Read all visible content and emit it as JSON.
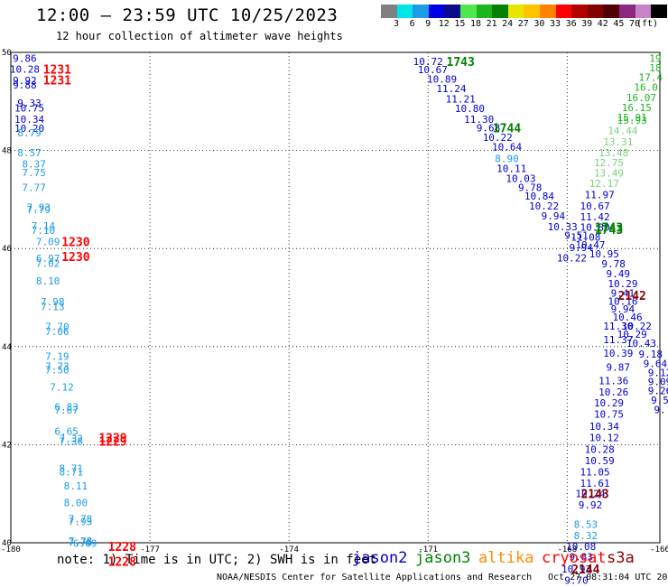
{
  "header": {
    "title": "12:00 – 23:59 UTC 10/25/2023",
    "subtitle": "12 hour collection of altimeter wave heights",
    "unit_label": "(ft)"
  },
  "color_scale": {
    "colors": [
      "#808080",
      "#00e5e5",
      "#1e9be5",
      "#0000e5",
      "#0a0a8c",
      "#50e650",
      "#1eb41e",
      "#008200",
      "#e6e600",
      "#ffc300",
      "#ff8200",
      "#ff0000",
      "#b40000",
      "#820000",
      "#500000",
      "#8c2882",
      "#c882c8",
      "#000000"
    ],
    "tick_labels": [
      "3",
      "6",
      "9",
      "12",
      "15",
      "18",
      "21",
      "24",
      "27",
      "30",
      "33",
      "36",
      "39",
      "42",
      "45",
      "70"
    ]
  },
  "chart_data": {
    "type": "scatter",
    "xlim": [
      -180,
      -166
    ],
    "ylim": [
      40,
      50
    ],
    "x_ticks": [
      "-180",
      "-177",
      "-174",
      "-171",
      "-168",
      "-166"
    ],
    "x_tick_values": [
      -180,
      -177,
      -174,
      -171,
      -168,
      -166
    ],
    "y_ticks": [
      "50",
      "48",
      "46",
      "44",
      "42",
      "40"
    ],
    "y_tick_values": [
      50,
      48,
      46,
      44,
      42,
      40
    ],
    "grid": true,
    "series_colors": {
      "jason2": "#0000cd",
      "jason3": "#008200",
      "altika": "#ff8c00",
      "cryosat": "#ff0000",
      "s3a": "#8b0000",
      "sent": "#1e9be5",
      "green_light": "#7ad27a"
    },
    "points": [
      {
        "lon": -179.7,
        "lat": 49.88,
        "v": "9.86",
        "c": "#0000cd"
      },
      {
        "lon": -179.7,
        "lat": 49.66,
        "v": "10.28",
        "c": "#0000cd"
      },
      {
        "lon": -179.7,
        "lat": 49.43,
        "v": "9.92",
        "c": "#0000cd"
      },
      {
        "lon": -179.7,
        "lat": 49.34,
        "v": "9.88",
        "c": "#0000cd"
      },
      {
        "lon": -179.6,
        "lat": 48.97,
        "v": "9.33",
        "c": "#0000cd"
      },
      {
        "lon": -179.6,
        "lat": 48.87,
        "v": "10.75",
        "c": "#0000cd"
      },
      {
        "lon": -179.6,
        "lat": 48.64,
        "v": "10.34",
        "c": "#0000cd"
      },
      {
        "lon": -179.6,
        "lat": 48.45,
        "v": "10.20",
        "c": "#0000cd"
      },
      {
        "lon": -179.6,
        "lat": 48.36,
        "v": "8.79",
        "c": "#1e9be5"
      },
      {
        "lon": -179.6,
        "lat": 47.96,
        "v": "8.57",
        "c": "#1e9be5"
      },
      {
        "lon": -179.5,
        "lat": 47.73,
        "v": "8.37",
        "c": "#1e9be5"
      },
      {
        "lon": -179.5,
        "lat": 47.55,
        "v": "7.75",
        "c": "#1e9be5"
      },
      {
        "lon": -179.5,
        "lat": 47.25,
        "v": "7.77",
        "c": "#1e9be5"
      },
      {
        "lon": -179.4,
        "lat": 46.84,
        "v": "7.93",
        "c": "#1e9be5"
      },
      {
        "lon": -179.4,
        "lat": 46.8,
        "v": "7.79",
        "c": "#1e9be5"
      },
      {
        "lon": -179.3,
        "lat": 46.46,
        "v": "7.14",
        "c": "#1e9be5"
      },
      {
        "lon": -179.3,
        "lat": 46.37,
        "v": "7.10",
        "c": "#1e9be5"
      },
      {
        "lon": -179.2,
        "lat": 46.14,
        "v": "7.09",
        "c": "#1e9be5"
      },
      {
        "lon": -179.2,
        "lat": 45.8,
        "v": "6.97",
        "c": "#1e9be5"
      },
      {
        "lon": -179.2,
        "lat": 45.7,
        "v": "7.02",
        "c": "#1e9be5"
      },
      {
        "lon": -179.2,
        "lat": 45.34,
        "v": "8.10",
        "c": "#1e9be5"
      },
      {
        "lon": -179.1,
        "lat": 44.92,
        "v": "7.98",
        "c": "#1e9be5"
      },
      {
        "lon": -179.1,
        "lat": 44.82,
        "v": "7.13",
        "c": "#1e9be5"
      },
      {
        "lon": -179.0,
        "lat": 44.41,
        "v": "7.70",
        "c": "#1e9be5"
      },
      {
        "lon": -179.0,
        "lat": 44.31,
        "v": "7.06",
        "c": "#1e9be5"
      },
      {
        "lon": -179.0,
        "lat": 43.8,
        "v": "7.19",
        "c": "#1e9be5"
      },
      {
        "lon": -179.0,
        "lat": 43.6,
        "v": "7.73",
        "c": "#1e9be5"
      },
      {
        "lon": -179.0,
        "lat": 43.53,
        "v": "7.50",
        "c": "#1e9be5"
      },
      {
        "lon": -178.9,
        "lat": 43.18,
        "v": "7.12",
        "c": "#1e9be5"
      },
      {
        "lon": -178.8,
        "lat": 42.77,
        "v": "6.83",
        "c": "#1e9be5"
      },
      {
        "lon": -178.8,
        "lat": 42.71,
        "v": "7.67",
        "c": "#1e9be5"
      },
      {
        "lon": -178.8,
        "lat": 42.27,
        "v": "6.65",
        "c": "#1e9be5"
      },
      {
        "lon": -178.7,
        "lat": 42.13,
        "v": "7.32",
        "c": "#1e9be5"
      },
      {
        "lon": -178.7,
        "lat": 42.07,
        "v": "7.38",
        "c": "#1e9be5"
      },
      {
        "lon": -178.7,
        "lat": 41.52,
        "v": "8.71",
        "c": "#1e9be5"
      },
      {
        "lon": -178.7,
        "lat": 41.45,
        "v": "8.71",
        "c": "#1e9be5"
      },
      {
        "lon": -178.6,
        "lat": 41.16,
        "v": "8.11",
        "c": "#1e9be5"
      },
      {
        "lon": -178.6,
        "lat": 40.82,
        "v": "8.00",
        "c": "#1e9be5"
      },
      {
        "lon": -178.5,
        "lat": 40.49,
        "v": "7.78",
        "c": "#1e9be5"
      },
      {
        "lon": -178.5,
        "lat": 40.43,
        "v": "7.93",
        "c": "#1e9be5"
      },
      {
        "lon": -178.5,
        "lat": 40.01,
        "v": "7.76",
        "c": "#1e9be5"
      },
      {
        "lon": -178.5,
        "lat": 40.04,
        "v": "7.78",
        "c": "#1e9be5"
      },
      {
        "lon": -178.4,
        "lat": 39.99,
        "v": "6.69",
        "c": "#1e9be5"
      },
      {
        "lon": -171.0,
        "lat": 49.82,
        "v": "10.72",
        "c": "#0000cd"
      },
      {
        "lon": -170.9,
        "lat": 49.65,
        "v": "10.67",
        "c": "#0000cd"
      },
      {
        "lon": -170.7,
        "lat": 49.46,
        "v": "10.89",
        "c": "#0000cd"
      },
      {
        "lon": -170.5,
        "lat": 49.26,
        "v": "11.24",
        "c": "#0000cd"
      },
      {
        "lon": -170.3,
        "lat": 49.05,
        "v": "11.21",
        "c": "#0000cd"
      },
      {
        "lon": -170.1,
        "lat": 48.86,
        "v": "10.80",
        "c": "#0000cd"
      },
      {
        "lon": -169.9,
        "lat": 48.64,
        "v": "11.30",
        "c": "#0000cd"
      },
      {
        "lon": -169.7,
        "lat": 48.46,
        "v": "9.68",
        "c": "#0000cd"
      },
      {
        "lon": -169.5,
        "lat": 48.27,
        "v": "10.22",
        "c": "#0000cd"
      },
      {
        "lon": -169.3,
        "lat": 48.08,
        "v": "10.64",
        "c": "#0000cd"
      },
      {
        "lon": -169.3,
        "lat": 47.84,
        "v": "8.90",
        "c": "#1e9be5"
      },
      {
        "lon": -169.2,
        "lat": 47.63,
        "v": "10.11",
        "c": "#0000cd"
      },
      {
        "lon": -169.0,
        "lat": 47.43,
        "v": "10.03",
        "c": "#0000cd"
      },
      {
        "lon": -168.8,
        "lat": 47.25,
        "v": "9.78",
        "c": "#0000cd"
      },
      {
        "lon": -168.6,
        "lat": 47.07,
        "v": "10.84",
        "c": "#0000cd"
      },
      {
        "lon": -168.5,
        "lat": 46.87,
        "v": "10.22",
        "c": "#0000cd"
      },
      {
        "lon": -168.3,
        "lat": 46.67,
        "v": "9.94",
        "c": "#0000cd"
      },
      {
        "lon": -168.1,
        "lat": 46.45,
        "v": "10.33",
        "c": "#0000cd"
      },
      {
        "lon": -167.8,
        "lat": 46.27,
        "v": "9.51",
        "c": "#0000cd"
      },
      {
        "lon": -167.5,
        "lat": 46.08,
        "v": "10.47",
        "c": "#0000cd"
      },
      {
        "lon": -167.2,
        "lat": 45.89,
        "v": "10.95",
        "c": "#0000cd"
      },
      {
        "lon": -167.0,
        "lat": 45.69,
        "v": "9.78",
        "c": "#0000cd"
      },
      {
        "lon": -166.9,
        "lat": 45.49,
        "v": "9.49",
        "c": "#0000cd"
      },
      {
        "lon": -166.8,
        "lat": 45.29,
        "v": "10.29",
        "c": "#0000cd"
      },
      {
        "lon": -166.8,
        "lat": 45.09,
        "v": "9.41",
        "c": "#0000cd"
      },
      {
        "lon": -166.8,
        "lat": 44.93,
        "v": "10.16",
        "c": "#0000cd"
      },
      {
        "lon": -166.8,
        "lat": 44.77,
        "v": "9.94",
        "c": "#0000cd"
      },
      {
        "lon": -166.7,
        "lat": 44.6,
        "v": "10.46",
        "c": "#0000cd"
      },
      {
        "lon": -166.5,
        "lat": 44.42,
        "v": "10.22",
        "c": "#0000cd"
      },
      {
        "lon": -166.6,
        "lat": 44.25,
        "v": "10.29",
        "c": "#0000cd"
      },
      {
        "lon": -166.4,
        "lat": 44.07,
        "v": "10.43",
        "c": "#0000cd"
      },
      {
        "lon": -166.2,
        "lat": 43.85,
        "v": "9.18",
        "c": "#0000cd"
      },
      {
        "lon": -166.1,
        "lat": 43.66,
        "v": "9.64",
        "c": "#0000cd"
      },
      {
        "lon": -166.0,
        "lat": 43.47,
        "v": "9.12",
        "c": "#0000cd"
      },
      {
        "lon": -166.0,
        "lat": 43.29,
        "v": "9.09",
        "c": "#0000cd"
      },
      {
        "lon": -166.0,
        "lat": 43.1,
        "v": "9.26",
        "c": "#0000cd"
      },
      {
        "lon": -166.0,
        "lat": 42.91,
        "v": "9.5",
        "c": "#0000cd"
      },
      {
        "lon": -166.0,
        "lat": 42.72,
        "v": "9.",
        "c": "#0000cd"
      },
      {
        "lon": -166.9,
        "lat": 44.42,
        "v": "11.30",
        "c": "#0000cd"
      },
      {
        "lon": -166.9,
        "lat": 44.14,
        "v": "11.37",
        "c": "#0000cd"
      },
      {
        "lon": -166.9,
        "lat": 43.87,
        "v": "10.39",
        "c": "#0000cd"
      },
      {
        "lon": -166.9,
        "lat": 43.58,
        "v": "9.87",
        "c": "#0000cd"
      },
      {
        "lon": -167.0,
        "lat": 43.31,
        "v": "11.36",
        "c": "#0000cd"
      },
      {
        "lon": -167.0,
        "lat": 43.08,
        "v": "10.26",
        "c": "#0000cd"
      },
      {
        "lon": -167.1,
        "lat": 42.85,
        "v": "10.29",
        "c": "#0000cd"
      },
      {
        "lon": -167.1,
        "lat": 42.62,
        "v": "10.75",
        "c": "#0000cd"
      },
      {
        "lon": -167.2,
        "lat": 42.38,
        "v": "10.34",
        "c": "#0000cd"
      },
      {
        "lon": -167.2,
        "lat": 42.15,
        "v": "10.12",
        "c": "#0000cd"
      },
      {
        "lon": -167.3,
        "lat": 41.91,
        "v": "10.28",
        "c": "#0000cd"
      },
      {
        "lon": -167.3,
        "lat": 41.68,
        "v": "10.59",
        "c": "#0000cd"
      },
      {
        "lon": -167.4,
        "lat": 41.45,
        "v": "11.05",
        "c": "#0000cd"
      },
      {
        "lon": -167.4,
        "lat": 41.22,
        "v": "11.61",
        "c": "#0000cd"
      },
      {
        "lon": -167.5,
        "lat": 41.0,
        "v": "10.24",
        "c": "#0000cd"
      },
      {
        "lon": -167.5,
        "lat": 40.77,
        "v": "9.92",
        "c": "#0000cd"
      },
      {
        "lon": -167.6,
        "lat": 40.38,
        "v": "8.53",
        "c": "#1e9be5"
      },
      {
        "lon": -167.6,
        "lat": 40.15,
        "v": "8.32",
        "c": "#1e9be5"
      },
      {
        "lon": -167.7,
        "lat": 39.93,
        "v": "10.08",
        "c": "#0000cd"
      },
      {
        "lon": -167.7,
        "lat": 39.71,
        "v": "9.83",
        "c": "#0000cd"
      },
      {
        "lon": -167.8,
        "lat": 39.47,
        "v": "10.93",
        "c": "#0000cd"
      },
      {
        "lon": -167.8,
        "lat": 39.24,
        "v": "9.70",
        "c": "#0000cd"
      },
      {
        "lon": -166.1,
        "lat": 49.88,
        "v": "19",
        "c": "#1eb41e"
      },
      {
        "lon": -166.1,
        "lat": 49.69,
        "v": "18",
        "c": "#1eb41e"
      },
      {
        "lon": -166.2,
        "lat": 49.49,
        "v": "17.4",
        "c": "#1eb41e"
      },
      {
        "lon": -166.3,
        "lat": 49.29,
        "v": "16.0",
        "c": "#1eb41e"
      },
      {
        "lon": -166.4,
        "lat": 49.08,
        "v": "16.07",
        "c": "#1eb41e"
      },
      {
        "lon": -166.5,
        "lat": 48.88,
        "v": "16.15",
        "c": "#1eb41e"
      },
      {
        "lon": -166.6,
        "lat": 48.67,
        "v": "15.91",
        "c": "#1eb41e"
      },
      {
        "lon": -166.6,
        "lat": 48.62,
        "v": "15.93",
        "c": "#1eb41e"
      },
      {
        "lon": -166.8,
        "lat": 48.41,
        "v": "14.44",
        "c": "#7ad27a"
      },
      {
        "lon": -166.9,
        "lat": 48.18,
        "v": "13.31",
        "c": "#7ad27a"
      },
      {
        "lon": -167.0,
        "lat": 47.96,
        "v": "13.48",
        "c": "#7ad27a"
      },
      {
        "lon": -167.1,
        "lat": 47.75,
        "v": "12.75",
        "c": "#7ad27a"
      },
      {
        "lon": -167.1,
        "lat": 47.54,
        "v": "13.49",
        "c": "#7ad27a"
      },
      {
        "lon": -167.2,
        "lat": 47.33,
        "v": "12.17",
        "c": "#7ad27a"
      },
      {
        "lon": -167.3,
        "lat": 47.1,
        "v": "11.97",
        "c": "#0000cd"
      },
      {
        "lon": -167.4,
        "lat": 46.87,
        "v": "10.67",
        "c": "#0000cd"
      },
      {
        "lon": -167.4,
        "lat": 46.65,
        "v": "11.42",
        "c": "#0000cd"
      },
      {
        "lon": -167.4,
        "lat": 46.44,
        "v": "10.80",
        "c": "#0000cd"
      },
      {
        "lon": -167.6,
        "lat": 46.23,
        "v": "11.08",
        "c": "#0000cd"
      },
      {
        "lon": -167.7,
        "lat": 46.02,
        "v": "9.94",
        "c": "#0000cd"
      },
      {
        "lon": -167.9,
        "lat": 45.81,
        "v": "10.22",
        "c": "#0000cd"
      }
    ],
    "time_labels": [
      {
        "lon": -179.0,
        "lat": 49.66,
        "v": "1231",
        "c": "#ff0000"
      },
      {
        "lon": -179.0,
        "lat": 49.44,
        "v": "1231",
        "c": "#ff0000"
      },
      {
        "lon": -178.6,
        "lat": 46.14,
        "v": "1230",
        "c": "#ff0000"
      },
      {
        "lon": -178.6,
        "lat": 45.84,
        "v": "1230",
        "c": "#ff0000"
      },
      {
        "lon": -177.8,
        "lat": 42.15,
        "v": "1229",
        "c": "#ff0000"
      },
      {
        "lon": -177.8,
        "lat": 42.07,
        "v": "1229",
        "c": "#ff0000"
      },
      {
        "lon": -177.6,
        "lat": 39.93,
        "v": "1228",
        "c": "#ff0000"
      },
      {
        "lon": -177.6,
        "lat": 39.62,
        "v": "1228",
        "c": "#ff0000"
      },
      {
        "lon": -170.3,
        "lat": 49.82,
        "v": "1743",
        "c": "#008200"
      },
      {
        "lon": -169.3,
        "lat": 48.46,
        "v": "1744",
        "c": "#008200"
      },
      {
        "lon": -167.1,
        "lat": 46.44,
        "v": "1743",
        "c": "#008200"
      },
      {
        "lon": -167.1,
        "lat": 46.39,
        "v": "1743",
        "c": "#008200"
      },
      {
        "lon": -166.6,
        "lat": 45.05,
        "v": "2142",
        "c": "#8b0000"
      },
      {
        "lon": -167.4,
        "lat": 41.0,
        "v": "2143",
        "c": "#8b0000"
      },
      {
        "lon": -167.6,
        "lat": 39.47,
        "v": "2144",
        "c": "#8b0000"
      }
    ]
  },
  "footer": {
    "note": "note: 1) Time is in UTC; 2) SWH is in feet",
    "satellites": [
      {
        "name": "jason2",
        "color": "#0000cd"
      },
      {
        "name": "jason3",
        "color": "#008200"
      },
      {
        "name": "altika",
        "color": "#ff8c00"
      },
      {
        "name": "cryosat",
        "color": "#ff0000"
      },
      {
        "name": "s3a",
        "color": "#8b0000"
      }
    ],
    "credit": "NOAA/NESDIS Center for Satellite Applications and Research",
    "timestamp": "Oct 27 08:31:04 UTC 2023"
  }
}
